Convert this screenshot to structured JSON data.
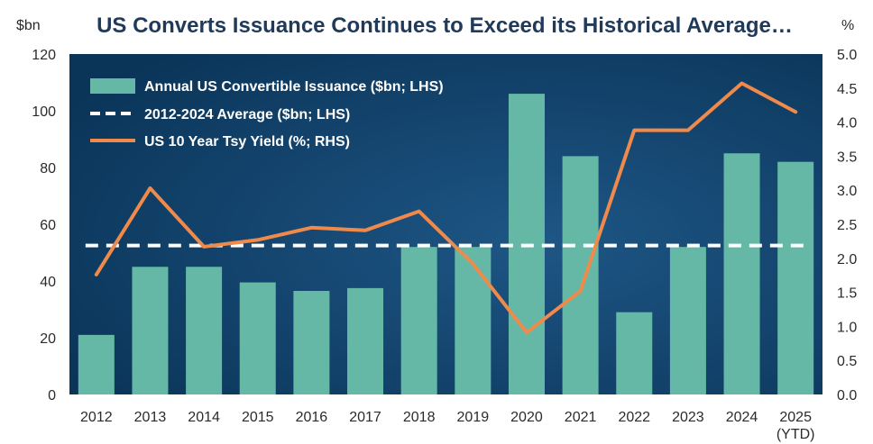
{
  "chart_data": {
    "type": "bar",
    "title": "US Converts Issuance Continues to Exceed its Historical Average…",
    "y_left_unit": "$bn",
    "y_right_unit": "%",
    "categories": [
      "2012",
      "2013",
      "2014",
      "2015",
      "2016",
      "2017",
      "2018",
      "2019",
      "2020",
      "2021",
      "2022",
      "2023",
      "2024",
      "2025"
    ],
    "category_sublabels": [
      "",
      "",
      "",
      "",
      "",
      "",
      "",
      "",
      "",
      "",
      "",
      "",
      "",
      "(YTD)"
    ],
    "ylim_left": [
      0,
      120
    ],
    "yticks_left": [
      "0",
      "20",
      "40",
      "60",
      "80",
      "100",
      "120"
    ],
    "ylim_right": [
      0,
      5
    ],
    "yticks_right": [
      "0.0",
      "0.5",
      "1.0",
      "1.5",
      "2.0",
      "2.5",
      "3.0",
      "3.5",
      "4.0",
      "4.5",
      "5.0"
    ],
    "series": [
      {
        "name": "Annual US Convertible Issuance ($bn; LHS)",
        "kind": "bar",
        "axis": "left",
        "color": "#66b8a6",
        "values": [
          21,
          45,
          45,
          39.5,
          36.5,
          37.5,
          52,
          52,
          106,
          84,
          29,
          52,
          85,
          82
        ]
      },
      {
        "name": "2012-2024 Average ($bn; LHS)",
        "kind": "dashed-line",
        "axis": "left",
        "color": "#ffffff",
        "value": 52.5
      },
      {
        "name": "US 10 Year Tsy Yield (%; RHS)",
        "kind": "line",
        "axis": "right",
        "color": "#f08a4b",
        "values": [
          1.76,
          3.03,
          2.17,
          2.27,
          2.45,
          2.41,
          2.69,
          1.92,
          0.91,
          1.52,
          3.88,
          3.88,
          4.57,
          4.15
        ]
      }
    ],
    "plot_background": "#0f3d66"
  }
}
